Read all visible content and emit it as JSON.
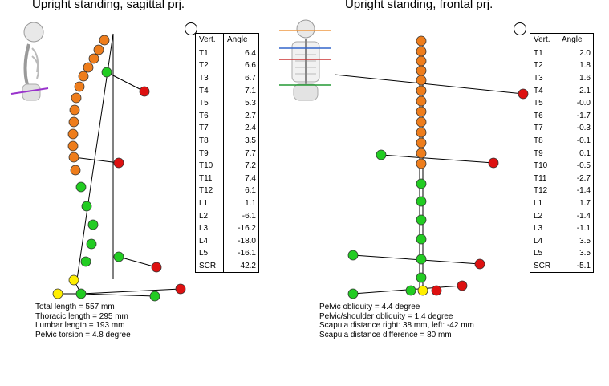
{
  "left_panel": {
    "title": "Upright standing, sagittal prj.",
    "table": {
      "headers": [
        "Vert.",
        "Angle"
      ],
      "rows": [
        [
          "T1",
          "6.4"
        ],
        [
          "T2",
          "6.6"
        ],
        [
          "T3",
          "6.7"
        ],
        [
          "T4",
          "7.1"
        ],
        [
          "T5",
          "5.3"
        ],
        [
          "T6",
          "2.7"
        ],
        [
          "T7",
          "2.4"
        ],
        [
          "T8",
          "3.5"
        ],
        [
          "T9",
          "7.7"
        ],
        [
          "T10",
          "7.2"
        ],
        [
          "T11",
          "7.4"
        ],
        [
          "T12",
          "6.1"
        ],
        [
          "L1",
          "1.1"
        ],
        [
          "L2",
          "-6.1"
        ],
        [
          "L3",
          "-16.2"
        ],
        [
          "L4",
          "-18.0"
        ],
        [
          "L5",
          "-16.1"
        ],
        [
          "SCR",
          "42.2"
        ]
      ]
    },
    "stats": [
      "Total length = 557 mm",
      "Thoracic length = 295 mm",
      "Lumbar length = 193 mm",
      "Pelvic torsion = 4.8 degree"
    ]
  },
  "right_panel": {
    "title": "Upright standing, frontal prj.",
    "table": {
      "headers": [
        "Vert.",
        "Angle"
      ],
      "rows": [
        [
          "T1",
          "2.0"
        ],
        [
          "T2",
          "1.8"
        ],
        [
          "T3",
          "1.6"
        ],
        [
          "T4",
          "2.1"
        ],
        [
          "T5",
          "-0.0"
        ],
        [
          "T6",
          "-1.7"
        ],
        [
          "T7",
          "-0.3"
        ],
        [
          "T8",
          "-0.1"
        ],
        [
          "T9",
          "0.1"
        ],
        [
          "T10",
          "-0.5"
        ],
        [
          "T11",
          "-2.7"
        ],
        [
          "T12",
          "-1.4"
        ],
        [
          "L1",
          "1.7"
        ],
        [
          "L2",
          "-1.4"
        ],
        [
          "L3",
          "-1.1"
        ],
        [
          "L4",
          "3.5"
        ],
        [
          "L5",
          "3.5"
        ],
        [
          "SCR",
          "-5.1"
        ]
      ]
    },
    "stats": [
      "Pelvic obliquity = 4.4 degree",
      "Pelvic/shoulder obliquity = 1.4 degree",
      "Scapula distance right: 38 mm, left: -42 mm",
      "Scapula distance difference = 80 mm"
    ]
  },
  "colors": {
    "thoracic": "#ee7d1c",
    "lumbar": "#22cc22",
    "marker_red": "#dd1111",
    "sacral_yellow": "#ffee00",
    "line": "#000000"
  },
  "icons": {
    "left_view_icon": "rotate-view-icon",
    "right_view_icon": "face-view-icon",
    "left_thumbnail": "skeleton-side-icon",
    "right_thumbnail": "skeleton-back-icon"
  }
}
